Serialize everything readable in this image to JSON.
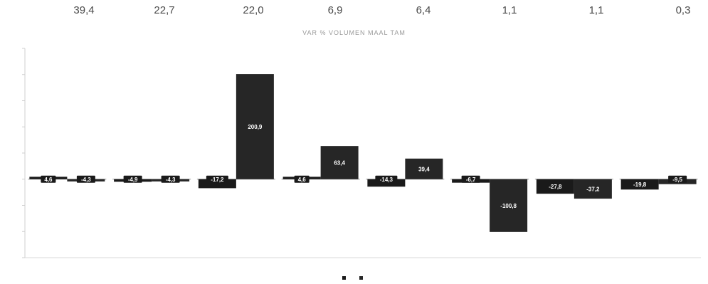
{
  "top_values": [
    "39,4",
    "22,7",
    "22,0",
    "6,9",
    "6,4",
    "1,1",
    "1,1",
    "0,3"
  ],
  "chart_data": {
    "type": "bar",
    "title": "VAR % VOLUMEN MAAL TAM",
    "categories": [
      "",
      "",
      "",
      "",
      "",
      "",
      "",
      ""
    ],
    "series": [
      {
        "name": "",
        "color": "#1a1a1a",
        "values": [
          4.6,
          -4.9,
          -17.2,
          4.6,
          -14.3,
          -6.7,
          -27.8,
          -19.8
        ],
        "labels": [
          "4,6",
          "-4,9",
          "-17,2",
          "4,6",
          "-14,3",
          "-6,7",
          "-27,8",
          "-19,8"
        ]
      },
      {
        "name": "",
        "color": "#262626",
        "values": [
          -4.3,
          -4.3,
          200.9,
          63.4,
          39.4,
          -100.8,
          -37.2,
          -9.5
        ],
        "labels": [
          "-4,3",
          "-4,3",
          "200,9",
          "63,4",
          "39,4",
          "-100,8",
          "-37,2",
          "-9,5"
        ]
      }
    ],
    "ylim": [
      -150,
      250
    ],
    "grid": false,
    "legend_position": "bottom"
  }
}
